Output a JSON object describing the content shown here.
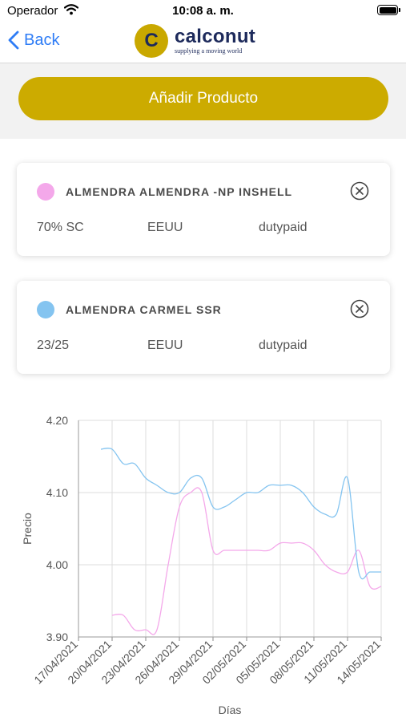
{
  "status_bar": {
    "carrier": "Operador",
    "time": "10:08 a. m."
  },
  "nav": {
    "back_label": "Back",
    "logo_letter": "C",
    "brand": "calconut",
    "tagline": "supplying a moving world",
    "brand_color": "#1d2a5b",
    "logo_color": "#c9a800"
  },
  "add_button": {
    "label": "Añadir Producto",
    "color": "#ccab00"
  },
  "products": [
    {
      "name": "ALMENDRA ALMENDRA -NP INSHELL",
      "grade": "70% SC",
      "origin": "EEUU",
      "condition": "dutypaid",
      "color": "#f4a8ea"
    },
    {
      "name": "ALMENDRA CARMEL SSR",
      "grade": "23/25",
      "origin": "EEUU",
      "condition": "dutypaid",
      "color": "#84c4f0"
    }
  ],
  "chart_data": {
    "type": "line",
    "xlabel": "Días",
    "ylabel": "Precio",
    "ylim": [
      3.9,
      4.2
    ],
    "yticks": [
      "3.90",
      "4.00",
      "4.10",
      "4.20"
    ],
    "xticks": [
      "17/04/2021",
      "20/04/2021",
      "23/04/2021",
      "26/04/2021",
      "29/04/2021",
      "02/05/2021",
      "05/05/2021",
      "08/05/2021",
      "11/05/2021",
      "14/05/2021"
    ],
    "grid": true,
    "series": [
      {
        "color": "#f4a8ea",
        "x": [
          "20/04/2021",
          "21/04/2021",
          "22/04/2021",
          "23/04/2021",
          "24/04/2021",
          "25/04/2021",
          "26/04/2021",
          "27/04/2021",
          "28/04/2021",
          "29/04/2021",
          "30/04/2021",
          "01/05/2021",
          "02/05/2021",
          "03/05/2021",
          "04/05/2021",
          "05/05/2021",
          "06/05/2021",
          "07/05/2021",
          "08/05/2021",
          "09/05/2021",
          "10/05/2021",
          "11/05/2021",
          "12/05/2021",
          "13/05/2021",
          "14/05/2021"
        ],
        "values": [
          3.93,
          3.93,
          3.91,
          3.91,
          3.91,
          4.0,
          4.08,
          4.1,
          4.1,
          4.02,
          4.02,
          4.02,
          4.02,
          4.02,
          4.02,
          4.03,
          4.03,
          4.03,
          4.02,
          4.0,
          3.99,
          3.99,
          4.02,
          3.97,
          3.97
        ]
      },
      {
        "color": "#84c4f0",
        "x": [
          "19/04/2021",
          "20/04/2021",
          "21/04/2021",
          "22/04/2021",
          "23/04/2021",
          "24/04/2021",
          "25/04/2021",
          "26/04/2021",
          "27/04/2021",
          "28/04/2021",
          "29/04/2021",
          "30/04/2021",
          "01/05/2021",
          "02/05/2021",
          "03/05/2021",
          "04/05/2021",
          "05/05/2021",
          "06/05/2021",
          "07/05/2021",
          "08/05/2021",
          "09/05/2021",
          "10/05/2021",
          "11/05/2021",
          "12/05/2021",
          "13/05/2021",
          "14/05/2021"
        ],
        "values": [
          4.16,
          4.16,
          4.14,
          4.14,
          4.12,
          4.11,
          4.1,
          4.1,
          4.12,
          4.12,
          4.08,
          4.08,
          4.09,
          4.1,
          4.1,
          4.11,
          4.11,
          4.11,
          4.1,
          4.08,
          4.07,
          4.07,
          4.12,
          3.99,
          3.99,
          3.99
        ]
      }
    ]
  }
}
